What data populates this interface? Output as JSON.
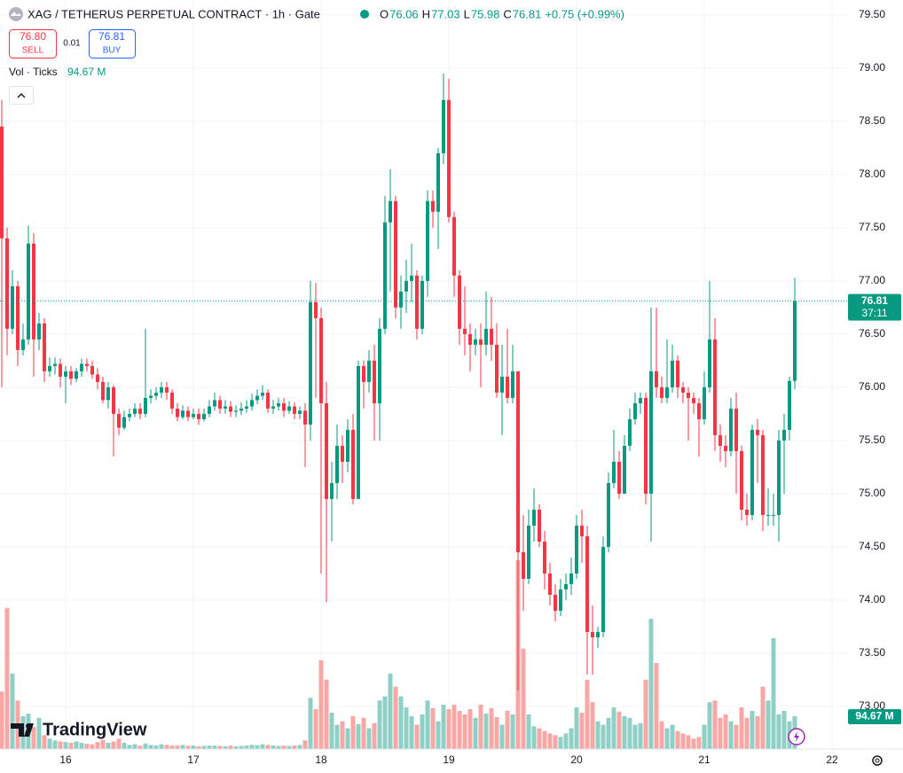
{
  "header": {
    "title": "XAG / TETHERUS PERPETUAL CONTRACT · 1h · Gate",
    "ohlc_labels": [
      "O",
      "H",
      "L",
      "C"
    ],
    "change": "+0.75 (+0.99%)"
  },
  "trade": {
    "sell_price": "76.80",
    "sell": "SELL",
    "spread": "0.01",
    "buy_price": "76.81",
    "buy": "BUY"
  },
  "indicator": {
    "name": "Vol · Ticks",
    "value": "94.67 M"
  },
  "countdown": "37:11",
  "brand": "TradingView",
  "chart_data": {
    "type": "candlestick",
    "up_color": "#089981",
    "down_color": "#f23645",
    "volume_up_color": "#8fd0c6",
    "volume_down_color": "#f7a8a6",
    "ylim": [
      72.6,
      79.64
    ],
    "yticks": [
      {
        "value": 73,
        "label": "73.00"
      },
      {
        "value": 73.5,
        "label": "73.50"
      },
      {
        "value": 74,
        "label": "74.00"
      },
      {
        "value": 74.5,
        "label": "74.50"
      },
      {
        "value": 75,
        "label": "75.00"
      },
      {
        "value": 75.5,
        "label": "75.50"
      },
      {
        "value": 76,
        "label": "76.00"
      },
      {
        "value": 76.5,
        "label": "76.50"
      },
      {
        "value": 77,
        "label": "77.00"
      },
      {
        "value": 77.5,
        "label": "77.50"
      },
      {
        "value": 78,
        "label": "78.00"
      },
      {
        "value": 78.5,
        "label": "78.50"
      },
      {
        "value": 79,
        "label": "79.00"
      },
      {
        "value": 79.5,
        "label": "79.50"
      }
    ],
    "grid": true,
    "categories": [
      null,
      null,
      null,
      null,
      null,
      null,
      null,
      null,
      null,
      null,
      null,
      null,
      "16",
      null,
      null,
      null,
      null,
      null,
      null,
      null,
      null,
      null,
      null,
      null,
      null,
      null,
      null,
      null,
      null,
      null,
      null,
      null,
      null,
      null,
      null,
      null,
      "17",
      null,
      null,
      null,
      null,
      null,
      null,
      null,
      null,
      null,
      null,
      null,
      null,
      null,
      null,
      null,
      null,
      null,
      null,
      null,
      null,
      null,
      null,
      null,
      "18",
      null,
      null,
      null,
      null,
      null,
      null,
      null,
      null,
      null,
      null,
      null,
      null,
      null,
      null,
      null,
      null,
      null,
      null,
      null,
      null,
      null,
      null,
      null,
      "19",
      null,
      null,
      null,
      null,
      null,
      null,
      null,
      null,
      null,
      null,
      null,
      null,
      null,
      null,
      null,
      null,
      null,
      null,
      null,
      null,
      null,
      null,
      null,
      "20",
      null,
      null,
      null,
      null,
      null,
      null,
      null,
      null,
      null,
      null,
      null,
      null,
      null,
      null,
      null,
      null,
      null,
      null,
      null,
      null,
      null,
      null,
      null,
      "21",
      null,
      null,
      null,
      null,
      null,
      null,
      null,
      null,
      null,
      null,
      null,
      null,
      null,
      null,
      null,
      null,
      null,
      null,
      null,
      null,
      null,
      null,
      null,
      "22"
    ],
    "open": [
      78.45,
      77.4,
      76.55,
      76.95,
      76.35,
      76.45,
      77.35,
      76.45,
      76.6,
      76.15,
      76.2,
      76.22,
      76.1,
      76.15,
      76.08,
      76.15,
      76.22,
      76.2,
      76.12,
      76.05,
      75.88,
      76.0,
      75.75,
      75.62,
      75.72,
      75.75,
      75.8,
      75.75,
      75.9,
      75.92,
      75.95,
      76.0,
      75.95,
      75.8,
      75.72,
      75.78,
      75.72,
      75.75,
      75.7,
      75.75,
      75.82,
      75.88,
      75.8,
      75.82,
      75.77,
      75.78,
      75.8,
      75.82,
      75.88,
      75.92,
      75.95,
      75.8,
      75.82,
      75.85,
      75.78,
      75.82,
      75.75,
      75.78,
      75.65,
      76.8,
      76.65,
      75.85,
      74.95,
      75.1,
      75.45,
      75.3,
      75.6,
      74.95,
      76.2,
      76.05,
      76.25,
      75.85,
      76.55,
      77.55,
      77.75,
      76.75,
      76.9,
      77.0,
      77.05,
      76.55,
      77.0,
      77.75,
      77.65,
      78.2,
      78.7,
      77.6,
      77.05,
      76.55,
      76.5,
      76.4,
      76.45,
      76.4,
      76.55,
      76.4,
      75.95,
      76.1,
      75.9,
      76.15,
      74.45,
      74.2,
      74.7,
      74.85,
      74.55,
      74.25,
      74.05,
      73.9,
      74.1,
      74.15,
      74.25,
      74.7,
      74.6,
      73.7,
      73.65,
      73.7,
      74.5,
      75.1,
      75.3,
      75.0,
      75.45,
      75.7,
      75.85,
      75.9,
      75.0,
      76.15,
      76.0,
      75.9,
      76.0,
      76.25,
      76.0,
      75.95,
      75.9,
      75.85,
      75.7,
      76.0,
      76.45,
      75.55,
      75.45,
      75.4,
      75.8,
      75.4,
      74.85,
      74.8,
      75.6,
      75.55,
      74.8,
      74.8,
      74.8,
      75.5,
      75.6,
      76.06,
      null,
      null,
      null,
      null,
      null,
      null,
      null
    ],
    "high": [
      78.7,
      77.5,
      77.1,
      77.0,
      76.6,
      77.52,
      77.45,
      76.7,
      76.65,
      76.28,
      76.28,
      76.27,
      76.2,
      76.2,
      76.18,
      76.27,
      76.27,
      76.25,
      76.18,
      76.1,
      76.05,
      76.02,
      75.8,
      75.78,
      75.8,
      75.85,
      75.85,
      76.55,
      75.98,
      76.0,
      76.05,
      76.05,
      75.98,
      75.85,
      75.83,
      75.82,
      75.8,
      75.8,
      75.8,
      75.88,
      75.95,
      75.92,
      75.88,
      75.87,
      75.83,
      75.86,
      75.88,
      75.94,
      75.98,
      76.02,
      75.98,
      75.88,
      75.9,
      75.9,
      75.87,
      75.86,
      75.82,
      75.85,
      77.0,
      76.98,
      76.75,
      76.05,
      75.3,
      75.65,
      75.55,
      75.7,
      75.75,
      76.25,
      76.25,
      76.35,
      76.4,
      76.65,
      77.8,
      78.05,
      77.8,
      77.05,
      77.2,
      77.35,
      77.1,
      77.05,
      77.85,
      77.85,
      78.25,
      78.95,
      78.9,
      77.65,
      77.1,
      76.95,
      76.6,
      76.55,
      76.6,
      76.9,
      76.85,
      76.6,
      76.4,
      76.55,
      76.4,
      76.15,
      74.8,
      74.85,
      75.05,
      74.9,
      74.65,
      74.35,
      74.15,
      74.2,
      74.25,
      74.4,
      74.8,
      74.85,
      74.7,
      73.95,
      73.75,
      74.6,
      75.2,
      75.6,
      75.4,
      75.55,
      75.8,
      75.95,
      75.95,
      75.95,
      76.75,
      76.75,
      76.1,
      76.45,
      76.4,
      76.3,
      76.05,
      76.0,
      75.95,
      75.9,
      76.15,
      77.0,
      76.65,
      75.65,
      75.55,
      75.9,
      75.95,
      75.45,
      75.0,
      75.65,
      75.7,
      75.6,
      75.05,
      75.0,
      75.6,
      75.75,
      76.1,
      77.03,
      null,
      null,
      null,
      null,
      null,
      null,
      null
    ],
    "low": [
      76.0,
      76.3,
      76.5,
      76.2,
      76.3,
      76.4,
      76.1,
      76.35,
      76.05,
      76.1,
      76.12,
      76.0,
      75.85,
      76.02,
      76.05,
      76.1,
      76.15,
      76.08,
      75.98,
      75.85,
      75.8,
      75.35,
      75.55,
      75.6,
      75.68,
      75.72,
      75.7,
      75.72,
      75.85,
      75.88,
      75.9,
      75.88,
      75.75,
      75.68,
      75.7,
      75.68,
      75.7,
      75.65,
      75.68,
      75.72,
      75.78,
      75.75,
      75.75,
      75.72,
      75.72,
      75.74,
      75.76,
      75.78,
      75.84,
      75.88,
      75.76,
      75.75,
      75.78,
      75.72,
      75.75,
      75.7,
      75.7,
      75.25,
      75.5,
      75.9,
      74.25,
      73.98,
      74.55,
      74.95,
      75.1,
      75.2,
      74.9,
      74.95,
      75.8,
      75.95,
      75.5,
      75.5,
      76.5,
      76.9,
      76.65,
      76.55,
      76.7,
      76.8,
      76.45,
      76.5,
      76.85,
      77.5,
      77.3,
      78.1,
      77.55,
      76.85,
      76.4,
      76.3,
      76.15,
      76.3,
      76.0,
      76.3,
      76.25,
      75.9,
      75.55,
      75.85,
      75.85,
      73.15,
      73.9,
      74.15,
      74.55,
      74.5,
      74.1,
      73.95,
      73.8,
      73.85,
      74.0,
      74.05,
      74.2,
      74.35,
      73.3,
      73.3,
      73.55,
      73.65,
      74.45,
      75.05,
      74.95,
      75.0,
      75.4,
      75.65,
      75.75,
      74.9,
      74.55,
      75.9,
      75.85,
      75.85,
      75.95,
      75.9,
      75.85,
      75.5,
      75.75,
      75.35,
      75.65,
      75.95,
      75.4,
      75.3,
      75.25,
      75.35,
      75.0,
      74.75,
      74.7,
      74.75,
      75.1,
      74.65,
      74.7,
      74.7,
      74.55,
      75.0,
      75.5,
      75.98,
      null,
      null,
      null,
      null,
      null,
      null,
      null
    ],
    "close": [
      77.4,
      76.55,
      76.95,
      76.35,
      76.45,
      77.35,
      76.45,
      76.6,
      76.15,
      76.2,
      76.22,
      76.1,
      76.15,
      76.08,
      76.15,
      76.22,
      76.2,
      76.12,
      76.05,
      75.88,
      76.0,
      75.75,
      75.62,
      75.72,
      75.75,
      75.8,
      75.75,
      75.9,
      75.92,
      75.95,
      76.0,
      75.95,
      75.8,
      75.72,
      75.78,
      75.72,
      75.75,
      75.7,
      75.75,
      75.82,
      75.88,
      75.8,
      75.82,
      75.77,
      75.78,
      75.8,
      75.82,
      75.88,
      75.92,
      75.95,
      75.8,
      75.82,
      75.85,
      75.78,
      75.82,
      75.75,
      75.78,
      75.65,
      76.8,
      76.65,
      75.85,
      74.95,
      75.1,
      75.45,
      75.3,
      75.6,
      74.95,
      76.2,
      76.05,
      76.25,
      75.85,
      76.55,
      77.55,
      77.75,
      76.75,
      76.9,
      77.0,
      77.05,
      76.55,
      77.0,
      77.75,
      77.65,
      78.2,
      78.7,
      77.6,
      77.05,
      76.55,
      76.5,
      76.4,
      76.45,
      76.4,
      76.55,
      76.4,
      75.95,
      76.1,
      75.9,
      76.15,
      74.45,
      74.2,
      74.7,
      74.85,
      74.55,
      74.25,
      74.05,
      73.9,
      74.1,
      74.15,
      74.25,
      74.7,
      74.6,
      73.7,
      73.65,
      73.7,
      74.5,
      75.1,
      75.3,
      75.0,
      75.45,
      75.7,
      75.85,
      75.9,
      75.0,
      76.15,
      76.0,
      75.9,
      76.0,
      76.25,
      76.0,
      75.95,
      75.9,
      75.85,
      75.7,
      76.0,
      76.45,
      75.55,
      75.45,
      75.4,
      75.8,
      75.4,
      74.85,
      74.8,
      75.6,
      75.55,
      74.8,
      74.8,
      74.8,
      75.5,
      75.6,
      76.06,
      76.81,
      null,
      null,
      null,
      null,
      null,
      null,
      null
    ],
    "volume": [
      166,
      407,
      218,
      140,
      95,
      102,
      64,
      90,
      40,
      30,
      25,
      22,
      20,
      18,
      22,
      18,
      15,
      14,
      20,
      26,
      18,
      22,
      30,
      18,
      12,
      14,
      10,
      16,
      12,
      10,
      14,
      12,
      10,
      10,
      12,
      9,
      10,
      8,
      9,
      10,
      10,
      9,
      8,
      10,
      8,
      9,
      10,
      12,
      11,
      14,
      12,
      10,
      9,
      10,
      9,
      10,
      12,
      25,
      148,
      115,
      256,
      200,
      105,
      70,
      80,
      60,
      95,
      72,
      90,
      60,
      75,
      140,
      152,
      218,
      180,
      152,
      120,
      95,
      70,
      100,
      140,
      118,
      80,
      128,
      115,
      128,
      110,
      100,
      115,
      90,
      128,
      102,
      118,
      92,
      70,
      110,
      100,
      545,
      290,
      100,
      66,
      60,
      52,
      45,
      40,
      35,
      45,
      60,
      120,
      105,
      200,
      135,
      80,
      70,
      90,
      120,
      108,
      95,
      90,
      70,
      75,
      200,
      376,
      248,
      80,
      60,
      70,
      52,
      45,
      40,
      30,
      35,
      70,
      135,
      140,
      90,
      100,
      80,
      70,
      120,
      90,
      110,
      95,
      180,
      140,
      320,
      100,
      110,
      80,
      94.67,
      null,
      null,
      null,
      null,
      null,
      null,
      null
    ]
  }
}
